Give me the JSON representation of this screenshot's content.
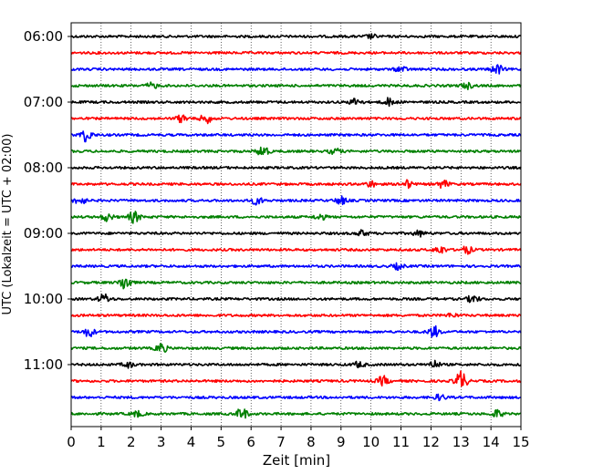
{
  "chart_data": {
    "type": "line",
    "title": "",
    "xlabel": "Zeit  [min]",
    "ylabel": "UTC (Lokalzeit = UTC + 02:00)",
    "xlim": [
      0,
      15
    ],
    "x_ticks": [
      "0",
      "1",
      "2",
      "3",
      "4",
      "5",
      "6",
      "7",
      "8",
      "9",
      "10",
      "11",
      "12",
      "13",
      "14",
      "15"
    ],
    "y_ticks": [
      "06:00",
      "07:00",
      "08:00",
      "09:00",
      "10:00",
      "11:00"
    ],
    "grid": "vertical dotted",
    "line_colors": [
      "#000000",
      "#ff0000",
      "#0000ff",
      "#008000"
    ],
    "series": [
      {
        "trace_start": "06:00",
        "color": "#000000",
        "bursts": [
          {
            "x": 10.0,
            "amp": 2
          }
        ]
      },
      {
        "trace_start": "06:15",
        "color": "#ff0000",
        "bursts": []
      },
      {
        "trace_start": "06:30",
        "color": "#0000ff",
        "bursts": [
          {
            "x": 11.0,
            "amp": 3
          },
          {
            "x": 14.2,
            "amp": 5
          }
        ]
      },
      {
        "trace_start": "06:45",
        "color": "#008000",
        "bursts": [
          {
            "x": 2.7,
            "amp": 3
          },
          {
            "x": 13.2,
            "amp": 3
          }
        ]
      },
      {
        "trace_start": "07:00",
        "color": "#000000",
        "bursts": [
          {
            "x": 9.5,
            "amp": 4
          },
          {
            "x": 10.6,
            "amp": 4
          }
        ]
      },
      {
        "trace_start": "07:15",
        "color": "#ff0000",
        "bursts": [
          {
            "x": 3.7,
            "amp": 4
          },
          {
            "x": 4.5,
            "amp": 5
          }
        ]
      },
      {
        "trace_start": "07:30",
        "color": "#0000ff",
        "bursts": [
          {
            "x": 0.5,
            "amp": 7
          }
        ]
      },
      {
        "trace_start": "07:45",
        "color": "#008000",
        "bursts": [
          {
            "x": 6.4,
            "amp": 6
          },
          {
            "x": 8.8,
            "amp": 3
          }
        ]
      },
      {
        "trace_start": "08:00",
        "color": "#000000",
        "bursts": []
      },
      {
        "trace_start": "08:15",
        "color": "#ff0000",
        "bursts": [
          {
            "x": 10.0,
            "amp": 3
          },
          {
            "x": 11.2,
            "amp": 4
          },
          {
            "x": 12.4,
            "amp": 4
          }
        ]
      },
      {
        "trace_start": "08:30",
        "color": "#0000ff",
        "bursts": [
          {
            "x": 0.3,
            "amp": 4
          },
          {
            "x": 6.2,
            "amp": 4
          },
          {
            "x": 9.0,
            "amp": 4
          }
        ]
      },
      {
        "trace_start": "08:45",
        "color": "#008000",
        "bursts": [
          {
            "x": 1.2,
            "amp": 4
          },
          {
            "x": 2.1,
            "amp": 6
          },
          {
            "x": 8.3,
            "amp": 3
          }
        ]
      },
      {
        "trace_start": "09:00",
        "color": "#000000",
        "bursts": [
          {
            "x": 9.7,
            "amp": 3
          },
          {
            "x": 11.6,
            "amp": 3
          }
        ]
      },
      {
        "trace_start": "09:15",
        "color": "#ff0000",
        "bursts": [
          {
            "x": 12.3,
            "amp": 4
          },
          {
            "x": 13.2,
            "amp": 4
          }
        ]
      },
      {
        "trace_start": "09:30",
        "color": "#0000ff",
        "bursts": [
          {
            "x": 10.9,
            "amp": 3
          }
        ]
      },
      {
        "trace_start": "09:45",
        "color": "#008000",
        "bursts": [
          {
            "x": 1.8,
            "amp": 8
          }
        ]
      },
      {
        "trace_start": "10:00",
        "color": "#000000",
        "bursts": [
          {
            "x": 1.1,
            "amp": 5
          },
          {
            "x": 13.4,
            "amp": 4
          }
        ]
      },
      {
        "trace_start": "10:15",
        "color": "#ff0000",
        "bursts": [
          {
            "x": 12.7,
            "amp": 2
          }
        ]
      },
      {
        "trace_start": "10:30",
        "color": "#0000ff",
        "bursts": [
          {
            "x": 0.6,
            "amp": 5
          },
          {
            "x": 12.1,
            "amp": 6
          }
        ]
      },
      {
        "trace_start": "10:45",
        "color": "#008000",
        "bursts": [
          {
            "x": 3.0,
            "amp": 5
          }
        ]
      },
      {
        "trace_start": "11:00",
        "color": "#000000",
        "bursts": [
          {
            "x": 1.9,
            "amp": 3
          },
          {
            "x": 9.6,
            "amp": 3
          },
          {
            "x": 12.1,
            "amp": 4
          }
        ]
      },
      {
        "trace_start": "11:15",
        "color": "#ff0000",
        "bursts": [
          {
            "x": 10.4,
            "amp": 5
          },
          {
            "x": 13.0,
            "amp": 11
          }
        ]
      },
      {
        "trace_start": "11:30",
        "color": "#0000ff",
        "bursts": [
          {
            "x": 12.3,
            "amp": 3
          }
        ]
      },
      {
        "trace_start": "11:45",
        "color": "#008000",
        "bursts": [
          {
            "x": 2.2,
            "amp": 3
          },
          {
            "x": 5.7,
            "amp": 6
          },
          {
            "x": 14.2,
            "amp": 4
          }
        ]
      }
    ]
  }
}
